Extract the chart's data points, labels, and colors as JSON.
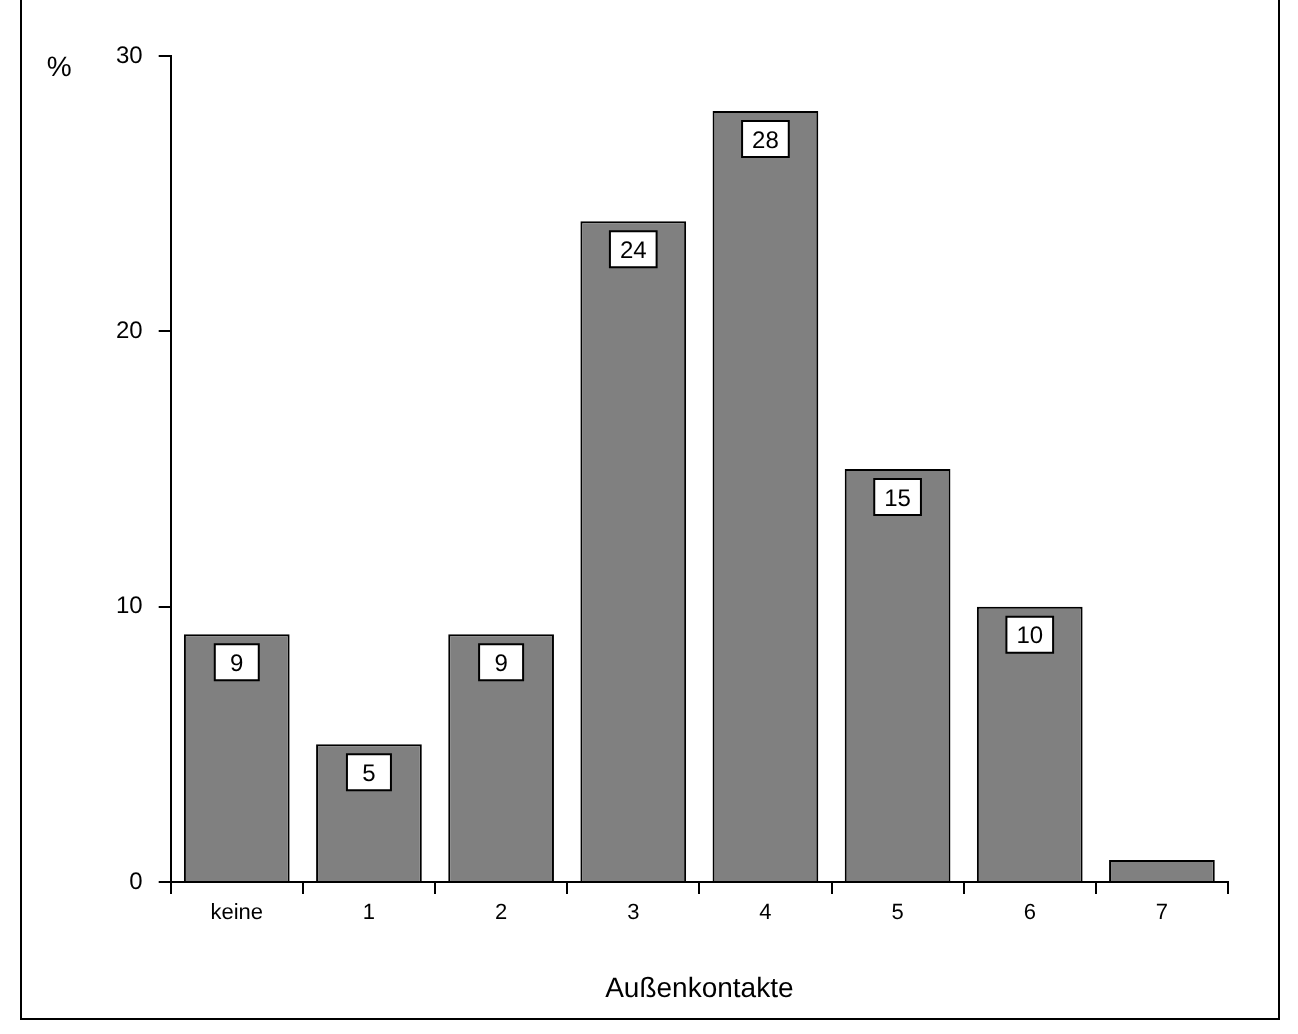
{
  "chart_data": {
    "type": "bar",
    "xlabel": "Außenkontakte",
    "ylabel": "%",
    "categories": [
      "keine",
      "1",
      "2",
      "3",
      "4",
      "5",
      "6",
      "7"
    ],
    "values": [
      9,
      5,
      9,
      24,
      28,
      15,
      10,
      0.8
    ],
    "value_labels": [
      "9",
      "5",
      "9",
      "24",
      "28",
      "15",
      "10",
      null
    ],
    "color": "#808080",
    "ylim": [
      0,
      30
    ],
    "yticks": [
      0,
      10,
      20,
      30
    ],
    "grid": false,
    "legend": false
  }
}
